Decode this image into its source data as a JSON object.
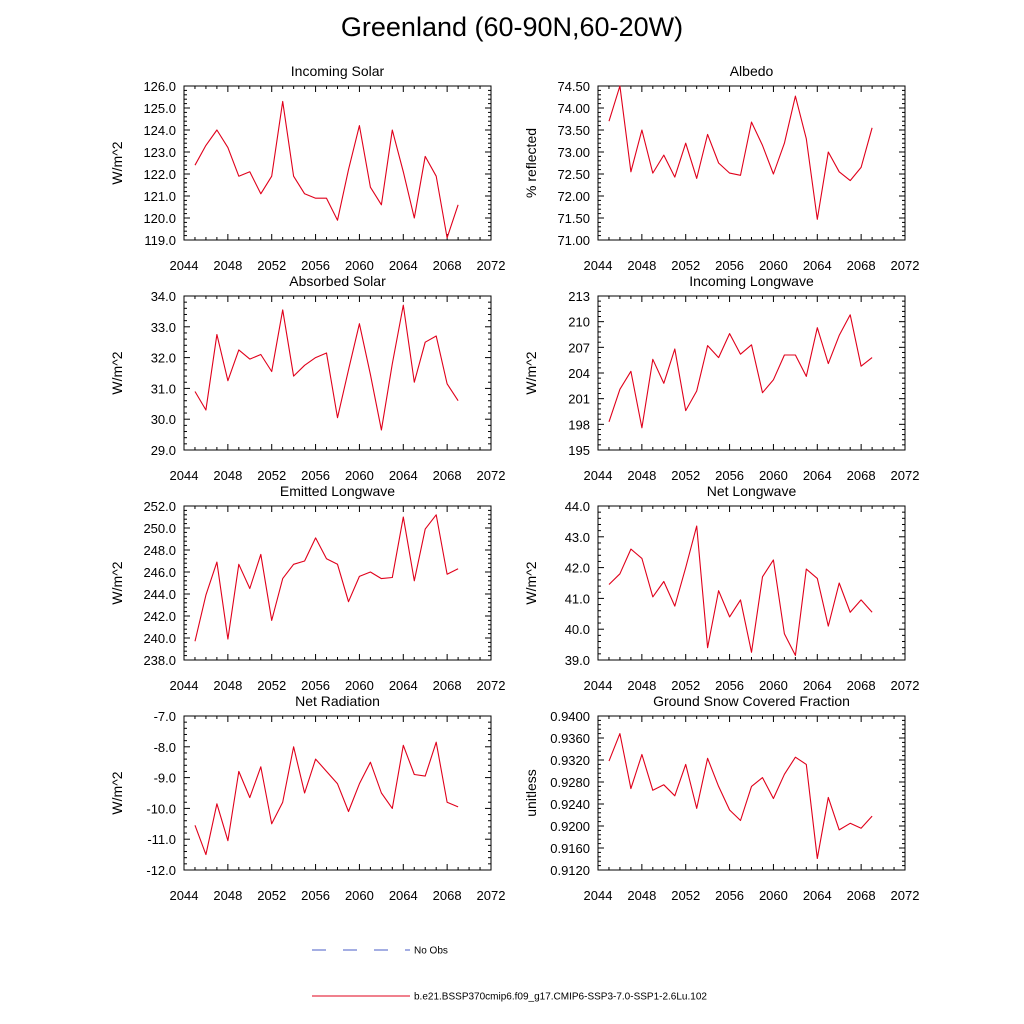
{
  "title": "Greenland (60-90N,60-20W)",
  "x_tick_labels": [
    "2044",
    "2048",
    "2052",
    "2056",
    "2060",
    "2064",
    "2068",
    "2072"
  ],
  "legend": {
    "no_obs": "No Obs",
    "model_run": "b.e21.BSSP370cmip6.f09_g17.CMIP6-SSP3-7.0-SSP1-2.6Lu.102",
    "no_obs_color": "#4a5cc7",
    "model_color": "#e0001b"
  },
  "chart_data": [
    {
      "type": "line",
      "title": "Incoming Solar",
      "ylabel": "W/m^2",
      "xlim": [
        2044,
        2072
      ],
      "ylim": [
        119.0,
        126.0
      ],
      "yticks": [
        "119.0",
        "120.0",
        "121.0",
        "122.0",
        "123.0",
        "124.0",
        "125.0",
        "126.0"
      ],
      "x": [
        2045,
        2046,
        2047,
        2048,
        2049,
        2050,
        2051,
        2052,
        2053,
        2054,
        2055,
        2056,
        2057,
        2058,
        2059,
        2060,
        2061,
        2062,
        2063,
        2064,
        2065,
        2066,
        2067,
        2068,
        2069
      ],
      "series": [
        {
          "color": "#e0001b",
          "values": [
            122.4,
            123.3,
            124.0,
            123.2,
            121.9,
            122.1,
            121.1,
            121.9,
            125.3,
            121.9,
            121.1,
            120.9,
            120.9,
            119.9,
            122.2,
            124.2,
            121.4,
            120.6,
            124.0,
            122.1,
            120.0,
            122.8,
            121.9,
            119.1,
            120.6
          ]
        }
      ]
    },
    {
      "type": "line",
      "title": "Albedo",
      "ylabel": "% reflected",
      "xlim": [
        2044,
        2072
      ],
      "ylim": [
        71.0,
        74.5
      ],
      "yticks": [
        "71.00",
        "71.50",
        "72.00",
        "72.50",
        "73.00",
        "73.50",
        "74.00",
        "74.50"
      ],
      "x": [
        2045,
        2046,
        2047,
        2048,
        2049,
        2050,
        2051,
        2052,
        2053,
        2054,
        2055,
        2056,
        2057,
        2058,
        2059,
        2060,
        2061,
        2062,
        2063,
        2064,
        2065,
        2066,
        2067,
        2068,
        2069
      ],
      "series": [
        {
          "color": "#e0001b",
          "values": [
            73.7,
            74.5,
            72.55,
            73.5,
            72.52,
            72.93,
            72.43,
            73.2,
            72.4,
            73.4,
            72.75,
            72.52,
            72.47,
            73.68,
            73.15,
            72.5,
            73.2,
            74.27,
            73.3,
            71.47,
            73.0,
            72.55,
            72.35,
            72.65,
            73.55
          ]
        }
      ]
    },
    {
      "type": "line",
      "title": "Absorbed Solar",
      "ylabel": "W/m^2",
      "xlim": [
        2044,
        2072
      ],
      "ylim": [
        29.0,
        34.0
      ],
      "yticks": [
        "29.0",
        "30.0",
        "31.0",
        "32.0",
        "33.0",
        "34.0"
      ],
      "x": [
        2045,
        2046,
        2047,
        2048,
        2049,
        2050,
        2051,
        2052,
        2053,
        2054,
        2055,
        2056,
        2057,
        2058,
        2059,
        2060,
        2061,
        2062,
        2063,
        2064,
        2065,
        2066,
        2067,
        2068,
        2069
      ],
      "series": [
        {
          "color": "#e0001b",
          "values": [
            30.9,
            30.3,
            32.75,
            31.25,
            32.25,
            31.95,
            32.1,
            31.55,
            33.55,
            31.4,
            31.75,
            32.0,
            32.15,
            30.05,
            31.6,
            33.1,
            31.45,
            29.65,
            31.8,
            33.7,
            31.2,
            32.5,
            32.7,
            31.15,
            30.6
          ]
        }
      ]
    },
    {
      "type": "line",
      "title": "Incoming Longwave",
      "ylabel": "W/m^2",
      "xlim": [
        2044,
        2072
      ],
      "ylim": [
        195,
        213
      ],
      "yticks": [
        "195",
        "198",
        "201",
        "204",
        "207",
        "210",
        "213"
      ],
      "x": [
        2045,
        2046,
        2047,
        2048,
        2049,
        2050,
        2051,
        2052,
        2053,
        2054,
        2055,
        2056,
        2057,
        2058,
        2059,
        2060,
        2061,
        2062,
        2063,
        2064,
        2065,
        2066,
        2067,
        2068,
        2069
      ],
      "series": [
        {
          "color": "#e0001b",
          "values": [
            198.3,
            202.1,
            204.2,
            197.6,
            205.6,
            202.8,
            206.8,
            199.6,
            201.9,
            207.2,
            205.8,
            208.6,
            206.2,
            207.3,
            201.7,
            203.2,
            206.1,
            206.1,
            203.6,
            209.3,
            205.1,
            208.4,
            210.8,
            204.8,
            205.8
          ]
        }
      ]
    },
    {
      "type": "line",
      "title": "Emitted Longwave",
      "ylabel": "W/m^2",
      "xlim": [
        2044,
        2072
      ],
      "ylim": [
        238.0,
        252.0
      ],
      "yticks": [
        "238.0",
        "240.0",
        "242.0",
        "244.0",
        "246.0",
        "248.0",
        "250.0",
        "252.0"
      ],
      "x": [
        2045,
        2046,
        2047,
        2048,
        2049,
        2050,
        2051,
        2052,
        2053,
        2054,
        2055,
        2056,
        2057,
        2058,
        2059,
        2060,
        2061,
        2062,
        2063,
        2064,
        2065,
        2066,
        2067,
        2068,
        2069
      ],
      "series": [
        {
          "color": "#e0001b",
          "values": [
            239.7,
            243.9,
            246.9,
            239.9,
            246.7,
            244.5,
            247.6,
            241.6,
            245.4,
            246.7,
            247.0,
            249.1,
            247.2,
            246.7,
            243.3,
            245.6,
            246.0,
            245.4,
            245.5,
            251.0,
            245.2,
            249.9,
            251.2,
            245.8,
            246.3
          ]
        }
      ]
    },
    {
      "type": "line",
      "title": "Net Longwave",
      "ylabel": "W/m^2",
      "xlim": [
        2044,
        2072
      ],
      "ylim": [
        39.0,
        44.0
      ],
      "yticks": [
        "39.0",
        "40.0",
        "41.0",
        "42.0",
        "43.0",
        "44.0"
      ],
      "x": [
        2045,
        2046,
        2047,
        2048,
        2049,
        2050,
        2051,
        2052,
        2053,
        2054,
        2055,
        2056,
        2057,
        2058,
        2059,
        2060,
        2061,
        2062,
        2063,
        2064,
        2065,
        2066,
        2067,
        2068,
        2069
      ],
      "series": [
        {
          "color": "#e0001b",
          "values": [
            41.45,
            41.8,
            42.6,
            42.3,
            41.05,
            41.55,
            40.75,
            42.0,
            43.35,
            39.4,
            41.25,
            40.4,
            40.95,
            39.25,
            41.7,
            42.25,
            39.85,
            39.15,
            41.95,
            41.65,
            40.1,
            41.5,
            40.55,
            40.95,
            40.55
          ]
        }
      ]
    },
    {
      "type": "line",
      "title": "Net Radiation",
      "ylabel": "W/m^2",
      "xlim": [
        2044,
        2072
      ],
      "ylim": [
        -12.0,
        -7.0
      ],
      "yticks": [
        "-12.0",
        "-11.0",
        "-10.0",
        "-9.0",
        "-8.0",
        "-7.0"
      ],
      "x": [
        2045,
        2046,
        2047,
        2048,
        2049,
        2050,
        2051,
        2052,
        2053,
        2054,
        2055,
        2056,
        2057,
        2058,
        2059,
        2060,
        2061,
        2062,
        2063,
        2064,
        2065,
        2066,
        2067,
        2068,
        2069
      ],
      "series": [
        {
          "color": "#e0001b",
          "values": [
            -10.55,
            -11.5,
            -9.85,
            -11.05,
            -8.8,
            -9.65,
            -8.65,
            -10.5,
            -9.8,
            -8.0,
            -9.5,
            -8.4,
            -8.8,
            -9.2,
            -10.1,
            -9.2,
            -8.5,
            -9.5,
            -10.0,
            -7.95,
            -8.9,
            -8.95,
            -7.85,
            -9.8,
            -9.95
          ]
        }
      ]
    },
    {
      "type": "line",
      "title": "Ground Snow Covered Fraction",
      "ylabel": "unitless",
      "xlim": [
        2044,
        2072
      ],
      "ylim": [
        0.912,
        0.94
      ],
      "yticks": [
        "0.9120",
        "0.9160",
        "0.9200",
        "0.9240",
        "0.9280",
        "0.9320",
        "0.9360",
        "0.9400"
      ],
      "x": [
        2045,
        2046,
        2047,
        2048,
        2049,
        2050,
        2051,
        2052,
        2053,
        2054,
        2055,
        2056,
        2057,
        2058,
        2059,
        2060,
        2061,
        2062,
        2063,
        2064,
        2065,
        2066,
        2067,
        2068,
        2069
      ],
      "series": [
        {
          "color": "#e0001b",
          "values": [
            0.9318,
            0.9368,
            0.9268,
            0.933,
            0.9265,
            0.9275,
            0.9255,
            0.9312,
            0.9232,
            0.9323,
            0.9272,
            0.9229,
            0.921,
            0.9272,
            0.9288,
            0.925,
            0.9294,
            0.9325,
            0.9312,
            0.9141,
            0.9252,
            0.9193,
            0.9205,
            0.9196,
            0.9218
          ]
        }
      ]
    }
  ]
}
